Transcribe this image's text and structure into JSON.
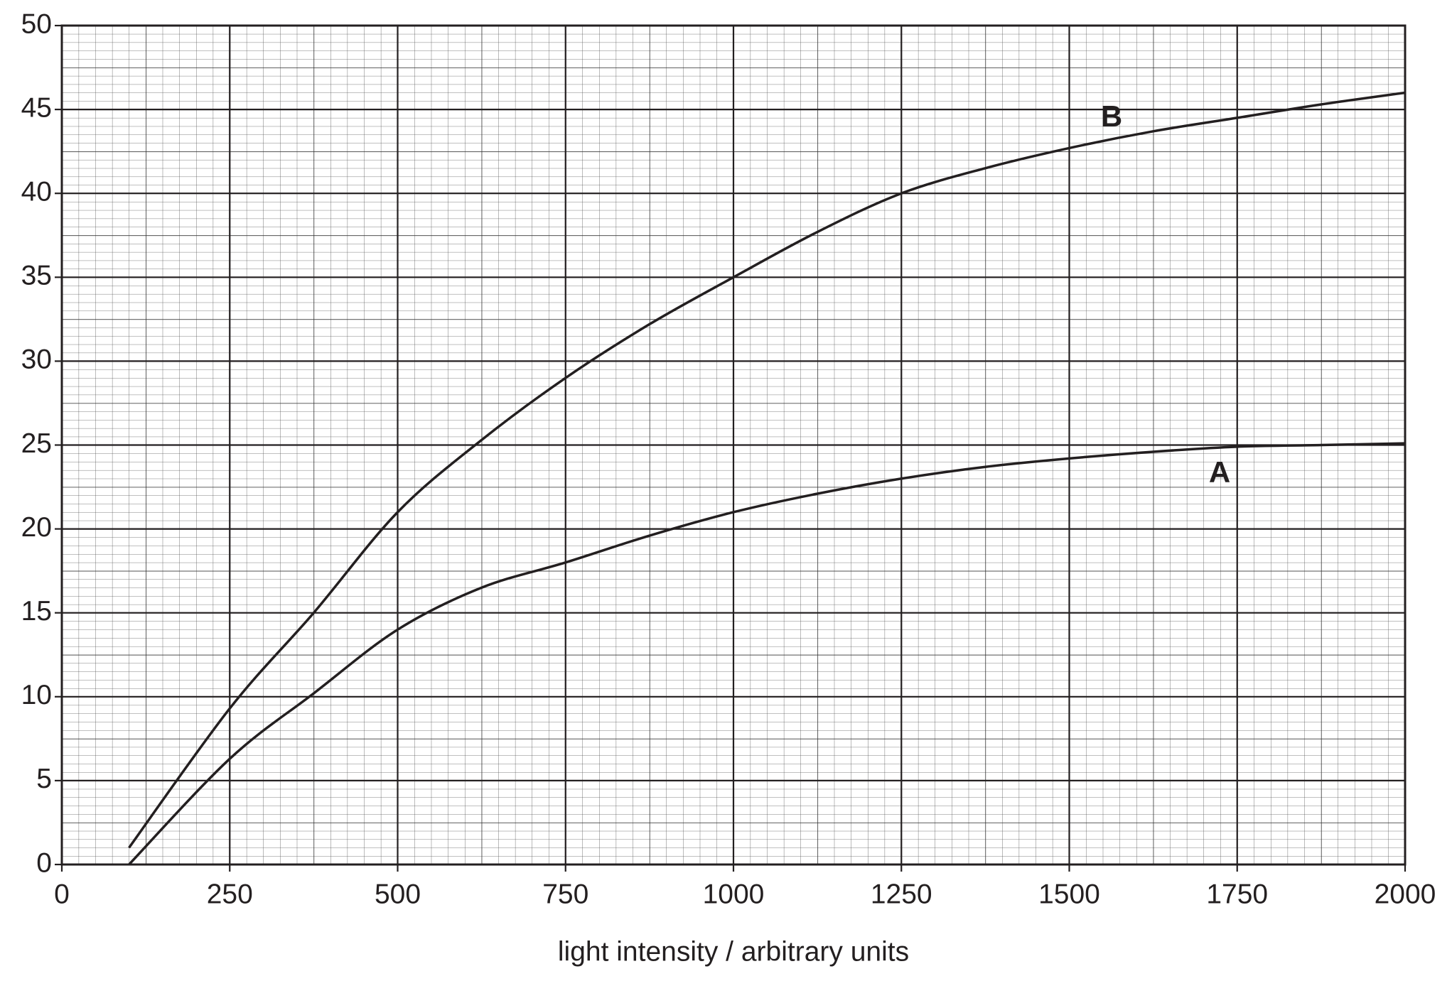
{
  "chart_data": {
    "type": "line",
    "xlabel": "light intensity / arbitrary units",
    "x": [
      100,
      250,
      375,
      500,
      625,
      750,
      875,
      1000,
      1125,
      1250,
      1375,
      1500,
      1625,
      1750,
      1875,
      2000
    ],
    "series": [
      {
        "name": "A",
        "color": "#231f20",
        "values": [
          0,
          6.3,
          10.2,
          14,
          16.5,
          18,
          19.6,
          21,
          22.1,
          23,
          23.7,
          24.2,
          24.6,
          24.9,
          25,
          25.1
        ]
      },
      {
        "name": "B",
        "color": "#231f20",
        "values": [
          1,
          9.3,
          15,
          21,
          25.3,
          29,
          32.2,
          35,
          37.7,
          40,
          41.5,
          42.7,
          43.7,
          44.5,
          45.3,
          46
        ]
      }
    ],
    "xlim": [
      0,
      2000
    ],
    "xticks": [
      0,
      250,
      500,
      750,
      1000,
      1250,
      1500,
      1750,
      2000
    ],
    "ylim": [
      0,
      50
    ],
    "yticks": [
      0,
      5,
      10,
      15,
      20,
      25,
      30,
      35,
      40,
      45,
      50
    ],
    "grid": true
  }
}
